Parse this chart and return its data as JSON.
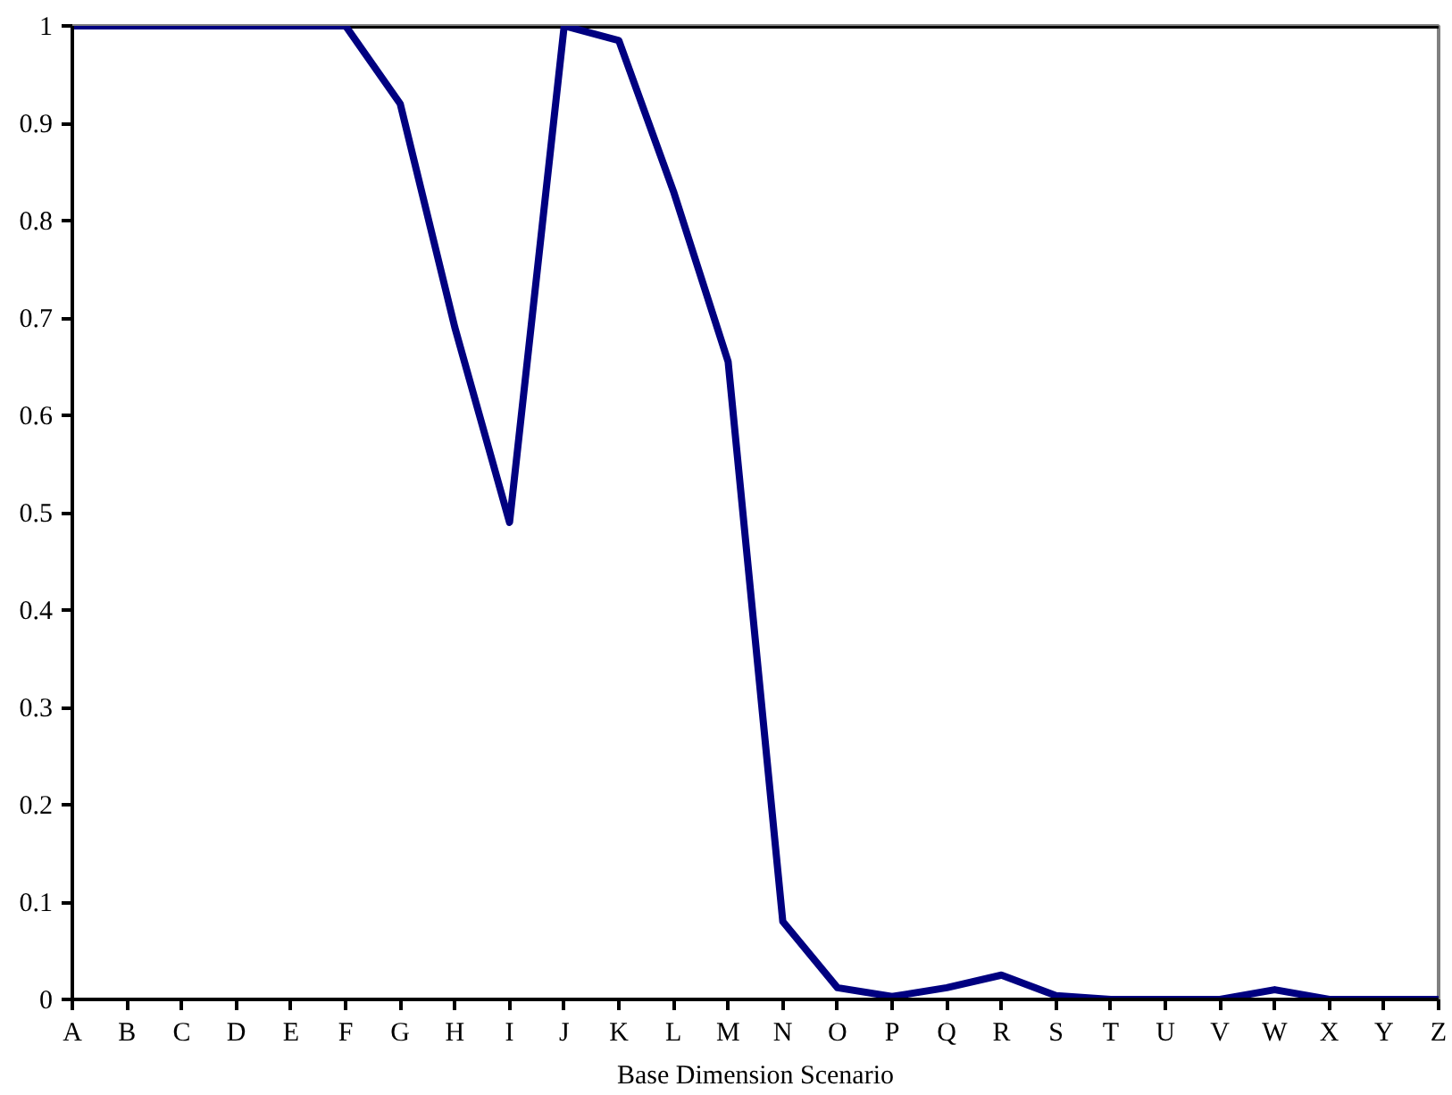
{
  "chart_data": {
    "type": "line",
    "xlabel": "Base Dimension Scenario",
    "categories": [
      "A",
      "B",
      "C",
      "D",
      "E",
      "F",
      "G",
      "H",
      "I",
      "J",
      "K",
      "L",
      "M",
      "N",
      "O",
      "P",
      "Q",
      "R",
      "S",
      "T",
      "U",
      "V",
      "W",
      "X",
      "Y",
      "Z"
    ],
    "series": [
      {
        "color": "#000080",
        "values": [
          1,
          1,
          1,
          1,
          1,
          1,
          0.92,
          0.69,
          0.49,
          1.0,
          0.985,
          0.83,
          0.655,
          0.08,
          0.012,
          0.003,
          0.012,
          0.025,
          0.004,
          0,
          0,
          0,
          0.01,
          0,
          0,
          0
        ]
      }
    ],
    "ylim": [
      0,
      1
    ],
    "yticks": [
      0,
      0.1,
      0.2,
      0.3,
      0.4,
      0.5,
      0.6,
      0.7,
      0.8,
      0.9,
      1
    ],
    "grid": false,
    "marker": "none",
    "line_style": "solid"
  }
}
